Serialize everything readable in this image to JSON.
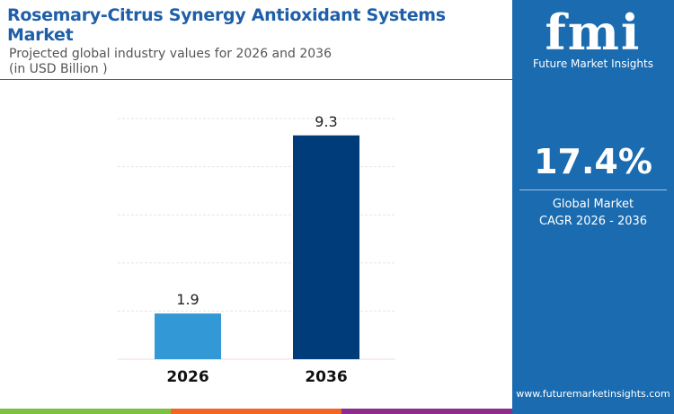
{
  "header": {
    "title": "Rosemary-Citrus Synergy Antioxidant Systems Market",
    "subtitle": "Projected global industry values for 2026 and 2036",
    "unit": "(in USD Billion )"
  },
  "sidebar": {
    "logo_text": "fmi",
    "logo_sub": "Future Market Insights",
    "cagr_value": "17.4%",
    "cagr_label1": "Global Market",
    "cagr_label2": "CAGR 2026 - 2036",
    "url": "www.futuremarketinsights.com"
  },
  "colors": {
    "bar_2026": "#3399d6",
    "bar_2036": "#003b7a",
    "brand": "#1a6bb0",
    "strip": [
      "#7dc142",
      "#f26522",
      "#8b2c8f"
    ]
  },
  "chart_data": {
    "type": "bar",
    "categories": [
      "2026",
      "2036"
    ],
    "values": [
      1.9,
      9.3
    ],
    "data_labels": [
      "1.9",
      "9.3"
    ],
    "ylim": [
      0,
      10
    ],
    "grid": true,
    "title": "",
    "xlabel": "",
    "ylabel": ""
  }
}
